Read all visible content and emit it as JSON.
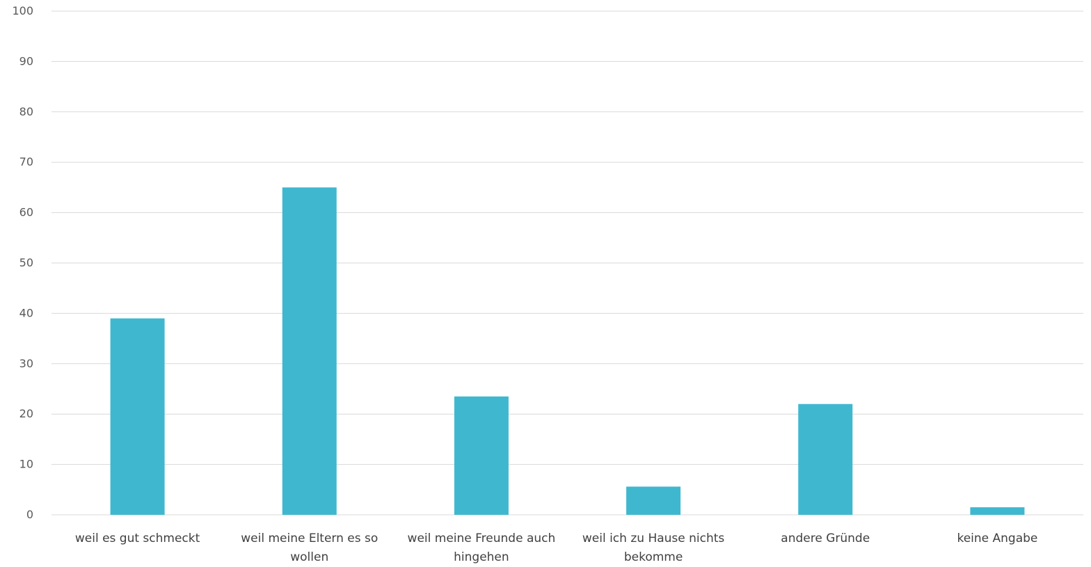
{
  "chart_data": {
    "type": "bar",
    "categories": [
      [
        "weil es gut schmeckt"
      ],
      [
        "weil meine Eltern es so",
        "wollen"
      ],
      [
        "weil meine Freunde auch",
        "hingehen"
      ],
      [
        "weil ich zu Hause nichts",
        "bekomme"
      ],
      [
        "andere Gründe"
      ],
      [
        "keine Angabe"
      ]
    ],
    "values": [
      39,
      65,
      23.5,
      5.6,
      22,
      1.5
    ],
    "ylim": [
      0,
      100
    ],
    "yticks": [
      "0",
      "10",
      "20",
      "30",
      "40",
      "50",
      "60",
      "70",
      "80",
      "90",
      "100"
    ],
    "grid": true,
    "bar_color": "#3fb8cf",
    "grid_color": "#d9d9d9"
  }
}
